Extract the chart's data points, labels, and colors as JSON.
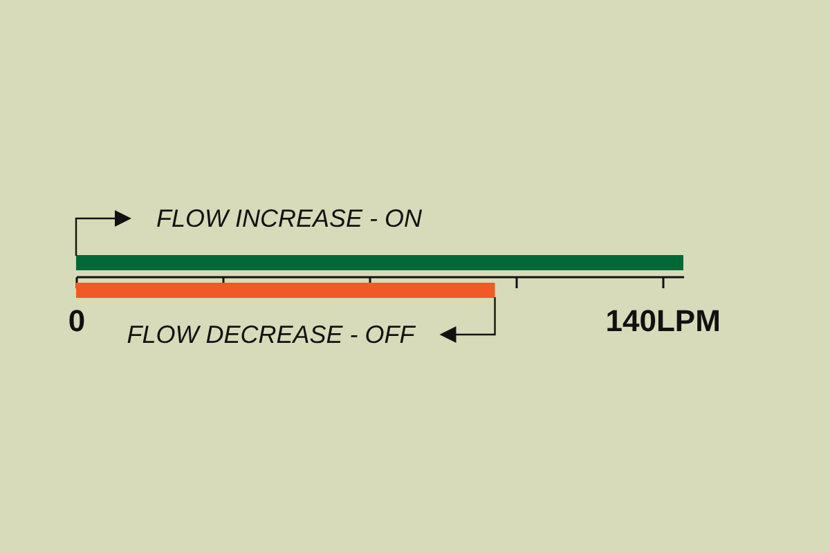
{
  "chart_data": {
    "type": "bar",
    "orientation": "horizontal",
    "categories": [
      null,
      null
    ],
    "values": [
      145,
      100
    ],
    "colors": [
      "#006837",
      "#f15a24"
    ],
    "xlim": [
      0,
      145
    ],
    "xticks": [
      0,
      {
        "value": 35,
        "label": null
      },
      {
        "value": 70,
        "label": null
      },
      {
        "value": 105,
        "label": null
      },
      {
        "value": 140,
        "label": "140LPM"
      }
    ],
    "annotations": [
      "FLOW INCREASE - ON",
      "FLOW DECREASE - OFF"
    ],
    "grid": false
  }
}
